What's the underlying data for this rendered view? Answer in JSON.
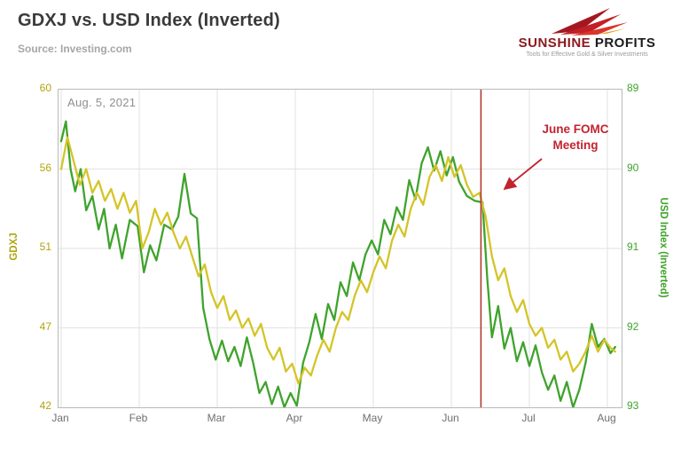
{
  "header": {
    "title": "GDXJ vs. USD Index (Inverted)",
    "source": "Source: Investing.com"
  },
  "logo": {
    "name_part1": "SUNSHINE",
    "name_part2": "PROFITS",
    "tagline": "Tools for Effective Gold & Silver Investments"
  },
  "chart_data": {
    "type": "line",
    "title": "GDXJ vs. USD Index (Inverted)",
    "date_annotation": "Aug. 5, 2021",
    "event_annotation": {
      "label_line1": "June FOMC",
      "label_line2": "Meeting",
      "x_month_frac": 5.38,
      "line_color": "#b03a2e"
    },
    "grid": true,
    "legend": "none",
    "x_ticks": [
      "Jan",
      "Feb",
      "Mar",
      "Apr",
      "May",
      "Jun",
      "Jul",
      "Aug"
    ],
    "left_axis": {
      "label": "GDXJ",
      "ticks": [
        60,
        56,
        51,
        47,
        42
      ],
      "color": "#b1a40e"
    },
    "right_axis": {
      "label": "USD Index  (Inverted)",
      "ticks": [
        89,
        90,
        91,
        92,
        93
      ],
      "inverted": true,
      "color": "#3fa32c"
    },
    "series": [
      {
        "name": "GDXJ",
        "axis": "left",
        "color": "#3fa32c",
        "x": [
          0.0,
          0.06,
          0.12,
          0.18,
          0.25,
          0.32,
          0.4,
          0.48,
          0.55,
          0.62,
          0.7,
          0.78,
          0.88,
          0.98,
          1.06,
          1.14,
          1.22,
          1.32,
          1.42,
          1.5,
          1.58,
          1.66,
          1.74,
          1.82,
          1.9,
          1.98,
          2.06,
          2.14,
          2.22,
          2.3,
          2.38,
          2.46,
          2.54,
          2.62,
          2.7,
          2.78,
          2.86,
          2.94,
          3.02,
          3.1,
          3.18,
          3.26,
          3.34,
          3.42,
          3.5,
          3.58,
          3.66,
          3.74,
          3.82,
          3.9,
          3.98,
          4.06,
          4.14,
          4.22,
          4.3,
          4.38,
          4.46,
          4.54,
          4.62,
          4.7,
          4.78,
          4.86,
          4.94,
          5.02,
          5.1,
          5.2,
          5.3,
          5.4,
          5.46,
          5.52,
          5.6,
          5.68,
          5.76,
          5.84,
          5.92,
          6.0,
          6.08,
          6.16,
          6.24,
          6.32,
          6.4,
          6.48,
          6.56,
          6.64,
          6.72,
          6.8,
          6.88,
          6.96,
          7.04,
          7.1
        ],
        "values": [
          57.4,
          58.4,
          56.0,
          54.6,
          56.0,
          53.4,
          54.3,
          52.2,
          53.5,
          51.0,
          52.5,
          50.5,
          52.8,
          52.4,
          49.8,
          51.2,
          50.4,
          52.5,
          52.2,
          53.0,
          55.7,
          53.2,
          52.9,
          48.0,
          46.3,
          45.0,
          46.2,
          44.9,
          45.8,
          44.6,
          46.4,
          44.8,
          42.9,
          43.6,
          42.2,
          43.3,
          41.9,
          42.9,
          42.1,
          44.8,
          46.1,
          47.7,
          46.3,
          48.2,
          47.4,
          49.3,
          48.6,
          50.3,
          49.4,
          50.7,
          51.5,
          50.7,
          52.8,
          51.9,
          53.6,
          52.8,
          55.3,
          54.1,
          56.3,
          57.1,
          55.9,
          56.9,
          55.6,
          56.6,
          55.2,
          54.3,
          54.0,
          53.9,
          49.5,
          46.4,
          48.1,
          45.7,
          47.0,
          44.9,
          46.1,
          44.6,
          45.9,
          44.2,
          43.1,
          44.0,
          42.4,
          43.6,
          42.0,
          43.1,
          44.8,
          47.2,
          45.8,
          46.3,
          45.4,
          45.8
        ]
      },
      {
        "name": "USD Index",
        "axis": "right",
        "color": "#d4c428",
        "x": [
          0.0,
          0.08,
          0.16,
          0.24,
          0.32,
          0.4,
          0.48,
          0.56,
          0.64,
          0.72,
          0.8,
          0.88,
          0.96,
          1.04,
          1.12,
          1.2,
          1.28,
          1.36,
          1.44,
          1.52,
          1.6,
          1.68,
          1.76,
          1.84,
          1.92,
          2.0,
          2.08,
          2.16,
          2.24,
          2.32,
          2.4,
          2.48,
          2.56,
          2.64,
          2.72,
          2.8,
          2.88,
          2.96,
          3.04,
          3.12,
          3.2,
          3.28,
          3.36,
          3.44,
          3.52,
          3.6,
          3.68,
          3.76,
          3.84,
          3.92,
          4.0,
          4.08,
          4.16,
          4.24,
          4.32,
          4.4,
          4.48,
          4.56,
          4.64,
          4.72,
          4.8,
          4.88,
          4.96,
          5.04,
          5.12,
          5.2,
          5.28,
          5.36,
          5.44,
          5.52,
          5.6,
          5.68,
          5.76,
          5.84,
          5.92,
          6.0,
          6.08,
          6.16,
          6.24,
          6.32,
          6.4,
          6.48,
          6.56,
          6.64,
          6.72,
          6.8,
          6.88,
          6.96,
          7.04,
          7.1
        ],
        "values": [
          90.0,
          89.6,
          89.9,
          90.2,
          90.0,
          90.3,
          90.15,
          90.4,
          90.25,
          90.5,
          90.3,
          90.55,
          90.4,
          91.0,
          90.8,
          90.5,
          90.7,
          90.55,
          90.8,
          91.0,
          90.85,
          91.1,
          91.35,
          91.2,
          91.55,
          91.75,
          91.6,
          91.9,
          91.78,
          92.0,
          91.88,
          92.1,
          91.95,
          92.25,
          92.4,
          92.25,
          92.55,
          92.45,
          92.7,
          92.5,
          92.6,
          92.35,
          92.15,
          92.3,
          92.0,
          91.8,
          91.9,
          91.6,
          91.4,
          91.55,
          91.3,
          91.1,
          91.25,
          90.9,
          90.7,
          90.85,
          90.5,
          90.3,
          90.45,
          90.1,
          89.95,
          90.15,
          89.85,
          90.1,
          89.95,
          90.2,
          90.35,
          90.3,
          90.6,
          91.1,
          91.4,
          91.25,
          91.6,
          91.8,
          91.65,
          91.95,
          92.1,
          92.0,
          92.25,
          92.15,
          92.4,
          92.3,
          92.55,
          92.45,
          92.3,
          92.1,
          92.3,
          92.15,
          92.25,
          92.3
        ]
      }
    ]
  }
}
